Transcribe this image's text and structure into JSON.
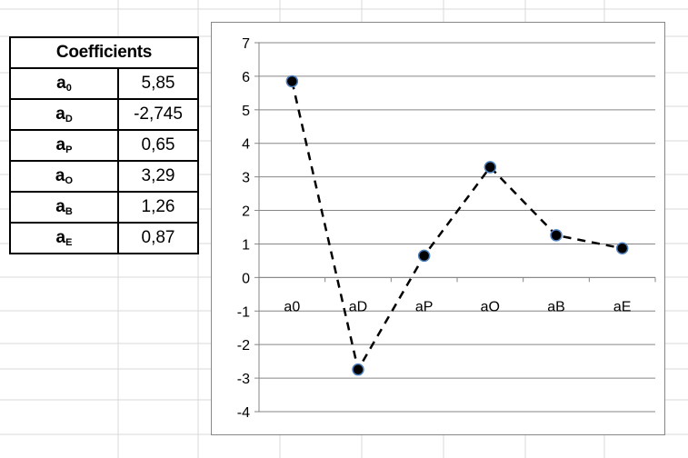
{
  "table": {
    "header": "Coefficients",
    "rows": [
      {
        "name": "a",
        "sub": "0",
        "value": "5,85"
      },
      {
        "name": "a",
        "sub": "D",
        "value": "-2,745"
      },
      {
        "name": "a",
        "sub": "P",
        "value": "0,65"
      },
      {
        "name": "a",
        "sub": "O",
        "value": "3,29"
      },
      {
        "name": "a",
        "sub": "B",
        "value": "1,26"
      },
      {
        "name": "a",
        "sub": "E",
        "value": "0,87"
      }
    ]
  },
  "chart_data": {
    "type": "line",
    "categories": [
      "a0",
      "aD",
      "aP",
      "aO",
      "aB",
      "aE"
    ],
    "series": [
      {
        "values": [
          5.85,
          -2.745,
          0.65,
          3.29,
          1.26,
          0.87
        ]
      }
    ],
    "ylim": [
      -4,
      7
    ],
    "yticks": [
      "-4",
      "-3",
      "-2",
      "-1",
      "0",
      "1",
      "2",
      "3",
      "4",
      "5",
      "6",
      "7"
    ],
    "grid": true,
    "line_style": "dashed",
    "marker_color": "#000000",
    "marker_edge_color": "#4f81bd"
  }
}
